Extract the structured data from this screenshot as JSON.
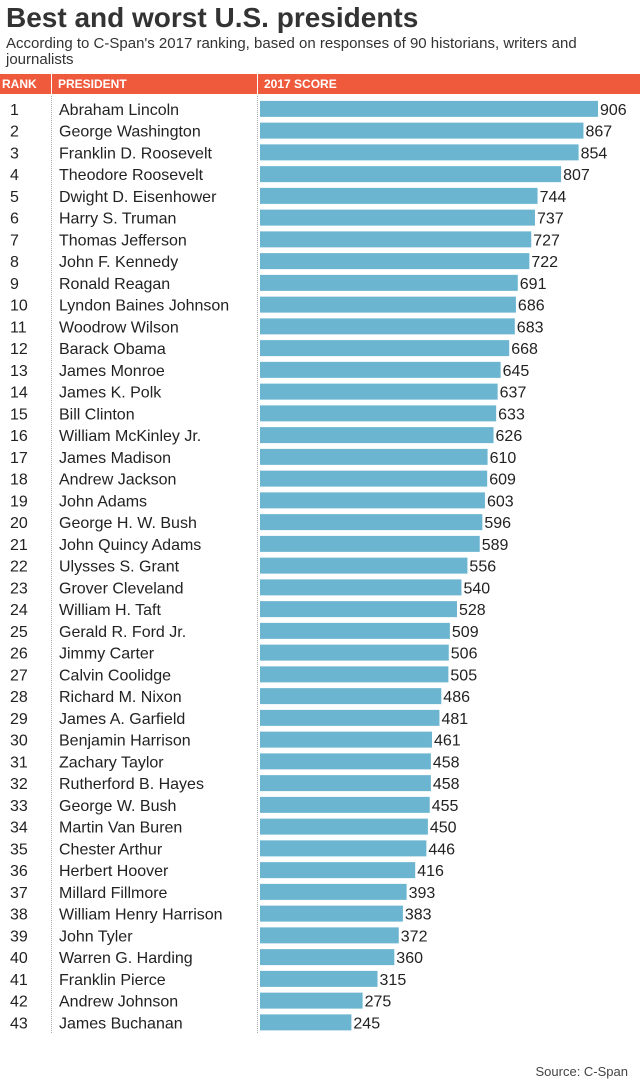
{
  "title": "Best and worst U.S. presidents",
  "subtitle": "According to C-Span's 2017 ranking, based on responses of 90 historians, writers and journalists",
  "header": {
    "rank": "RANK",
    "president": "PRESIDENT",
    "score": "2017 SCORE"
  },
  "source": "Source: C-Span",
  "colors": {
    "header": "#f05a3c",
    "bar": "#6cb5d0"
  },
  "chart_data": {
    "type": "bar",
    "orientation": "horizontal",
    "title": "Best and worst U.S. presidents",
    "value_label": "2017 SCORE",
    "xlim": [
      0,
      906
    ],
    "ranks": [
      1,
      2,
      3,
      4,
      5,
      6,
      7,
      8,
      9,
      10,
      11,
      12,
      13,
      14,
      15,
      16,
      17,
      18,
      19,
      20,
      21,
      22,
      23,
      24,
      25,
      26,
      27,
      28,
      29,
      30,
      31,
      32,
      33,
      34,
      35,
      36,
      37,
      38,
      39,
      40,
      41,
      42,
      43
    ],
    "categories": [
      "Abraham Lincoln",
      "George Washington",
      "Franklin D. Roosevelt",
      "Theodore Roosevelt",
      "Dwight D. Eisenhower",
      "Harry S. Truman",
      "Thomas Jefferson",
      "John F. Kennedy",
      "Ronald Reagan",
      "Lyndon Baines Johnson",
      "Woodrow Wilson",
      "Barack Obama",
      "James Monroe",
      "James K. Polk",
      "Bill Clinton",
      "William McKinley Jr.",
      "James Madison",
      "Andrew Jackson",
      "John Adams",
      "George H. W. Bush",
      "John Quincy Adams",
      "Ulysses S. Grant",
      "Grover Cleveland",
      "William H. Taft",
      "Gerald R. Ford Jr.",
      "Jimmy Carter",
      "Calvin Coolidge",
      "Richard M. Nixon",
      "James A. Garfield",
      "Benjamin Harrison",
      "Zachary Taylor",
      "Rutherford B. Hayes",
      "George W. Bush",
      "Martin Van Buren",
      "Chester Arthur",
      "Herbert Hoover",
      "Millard Fillmore",
      "William Henry Harrison",
      "John Tyler",
      "Warren G. Harding",
      "Franklin Pierce",
      "Andrew Johnson",
      "James Buchanan"
    ],
    "values": [
      906,
      867,
      854,
      807,
      744,
      737,
      727,
      722,
      691,
      686,
      683,
      668,
      645,
      637,
      633,
      626,
      610,
      609,
      603,
      596,
      589,
      556,
      540,
      528,
      509,
      506,
      505,
      486,
      481,
      461,
      458,
      458,
      455,
      450,
      446,
      416,
      393,
      383,
      372,
      360,
      315,
      275,
      245
    ]
  }
}
